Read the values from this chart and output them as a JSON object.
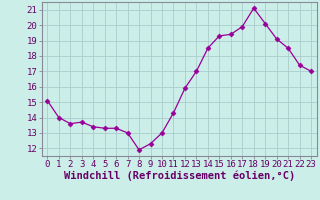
{
  "x": [
    0,
    1,
    2,
    3,
    4,
    5,
    6,
    7,
    8,
    9,
    10,
    11,
    12,
    13,
    14,
    15,
    16,
    17,
    18,
    19,
    20,
    21,
    22,
    23
  ],
  "y": [
    15.1,
    14.0,
    13.6,
    13.7,
    13.4,
    13.3,
    13.3,
    13.0,
    11.9,
    12.3,
    13.0,
    14.3,
    15.9,
    17.0,
    18.5,
    19.3,
    19.4,
    19.9,
    21.1,
    20.1,
    19.1,
    18.5,
    17.4,
    17.0
  ],
  "line_color": "#990099",
  "marker": "D",
  "marker_size": 2.5,
  "bg_color": "#cceee8",
  "grid_color": "#aacccc",
  "xlabel": "Windchill (Refroidissement éolien,°C)",
  "ylabel": "",
  "xlim": [
    -0.5,
    23.5
  ],
  "ylim": [
    11.5,
    21.5
  ],
  "yticks": [
    12,
    13,
    14,
    15,
    16,
    17,
    18,
    19,
    20,
    21
  ],
  "xticks": [
    0,
    1,
    2,
    3,
    4,
    5,
    6,
    7,
    8,
    9,
    10,
    11,
    12,
    13,
    14,
    15,
    16,
    17,
    18,
    19,
    20,
    21,
    22,
    23
  ],
  "tick_label_fontsize": 6.5,
  "xlabel_fontsize": 7.5,
  "spine_color": "#888899",
  "tick_color": "#888899"
}
